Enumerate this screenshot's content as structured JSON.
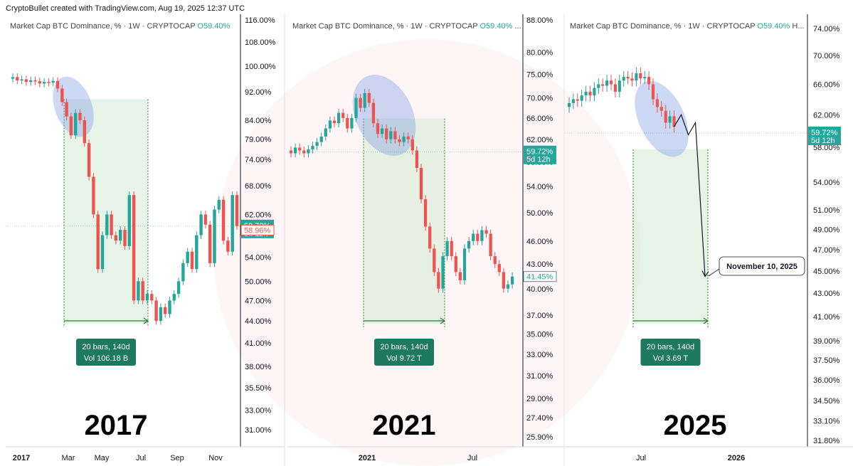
{
  "header": {
    "credit": "CryptoBullet created with TradingView.com, Aug 19, 2025 12:37 UTC"
  },
  "colors": {
    "up": "#26a69a",
    "down": "#ef5350",
    "label_bg": "#1e7a5e",
    "highlight": "#8fa8e6",
    "zone": "#c8e6c9"
  },
  "chart_data": [
    {
      "type": "candlestick",
      "title_prefix": "Market Cap BTC Dominance, % · 1W · CRYPTOCAP",
      "title_o": "O59.40%",
      "title_suffix": "",
      "year_label": "2017",
      "scale": "log",
      "ylim": [
        29.5,
        118
      ],
      "y_ticks": [
        "116.00%",
        "108.00%",
        "100.00%",
        "92.00%",
        "84.00%",
        "79.00%",
        "74.00%",
        "68.00%",
        "62.00%",
        "54.00%",
        "50.00%",
        "47.00%",
        "44.00%",
        "41.00%",
        "38.00%",
        "35.50%",
        "33.00%",
        "31.00%"
      ],
      "x_ticks": [
        "2017",
        "Mar",
        "May",
        "Jul",
        "Sep",
        "Nov"
      ],
      "current_price": {
        "label": "59.72%",
        "sub": "5d 12h",
        "value": 59.72
      },
      "secondary_price": {
        "label": "58.96%",
        "value": 58.96
      },
      "measure": {
        "bars": "20 bars, 140d",
        "vol": "Vol 106.18 B"
      },
      "series": [
        [
          96,
          96.5
        ],
        [
          96.5,
          95.5
        ],
        [
          95.5,
          95.8
        ],
        [
          95.8,
          95
        ],
        [
          95,
          95.5
        ],
        [
          95.5,
          95.2
        ],
        [
          95.2,
          94.5
        ],
        [
          94.5,
          95
        ],
        [
          95,
          94.8
        ],
        [
          94.8,
          95.3
        ],
        [
          95.3,
          93
        ],
        [
          93,
          89
        ],
        [
          89,
          85
        ],
        [
          85,
          80
        ],
        [
          80,
          86
        ],
        [
          86,
          84
        ],
        [
          84,
          78
        ],
        [
          78,
          70
        ],
        [
          70,
          62
        ],
        [
          62,
          52
        ],
        [
          52,
          58
        ],
        [
          58,
          62
        ],
        [
          62,
          58
        ],
        [
          58,
          57
        ],
        [
          57,
          59
        ],
        [
          59,
          56
        ],
        [
          56,
          66
        ],
        [
          66,
          47
        ],
        [
          47,
          50
        ],
        [
          50,
          47
        ],
        [
          47,
          48
        ],
        [
          48,
          47
        ],
        [
          47,
          44
        ],
        [
          44,
          46
        ],
        [
          46,
          45
        ],
        [
          45,
          47
        ],
        [
          47,
          48
        ],
        [
          48,
          50
        ],
        [
          50,
          53
        ],
        [
          53,
          55
        ],
        [
          55,
          52
        ],
        [
          52,
          58
        ],
        [
          58,
          62
        ],
        [
          62,
          60
        ],
        [
          60,
          53
        ],
        [
          53,
          63
        ],
        [
          63,
          65
        ],
        [
          65,
          57
        ],
        [
          57,
          55
        ],
        [
          55,
          66
        ],
        [
          66,
          59.72
        ]
      ]
    },
    {
      "type": "candlestick",
      "title_prefix": "Market Cap BTC Dominance, % · 1W · CRYPTOCAP",
      "title_o": "O59.40%",
      "title_suffix": "...",
      "year_label": "2021",
      "scale": "log",
      "ylim": [
        25.5,
        90
      ],
      "y_ticks": [
        "88.00%",
        "80.00%",
        "75.00%",
        "70.00%",
        "66.00%",
        "62.00%",
        "58.00%",
        "54.00%",
        "50.00%",
        "46.00%",
        "43.00%",
        "40.00%",
        "37.00%",
        "35.00%",
        "33.00%",
        "31.00%",
        "29.00%",
        "27.40%",
        "25.90%"
      ],
      "x_ticks": [
        "2021",
        "Jul"
      ],
      "current_price": {
        "label": "59.72%",
        "sub": "5d 12h",
        "value": 59.72
      },
      "secondary_price": {
        "label": "41.45%",
        "value": 41.45
      },
      "measure": {
        "bars": "20 bars, 140d",
        "vol": "Vol 9.72 T"
      },
      "series": [
        [
          60,
          59.5
        ],
        [
          59.5,
          60.5
        ],
        [
          60.5,
          60
        ],
        [
          60,
          59.5
        ],
        [
          59.5,
          60.2
        ],
        [
          60.2,
          60.8
        ],
        [
          60.8,
          61.5
        ],
        [
          61.5,
          62.5
        ],
        [
          62.5,
          64
        ],
        [
          64,
          65.5
        ],
        [
          65.5,
          65
        ],
        [
          65,
          67
        ],
        [
          67,
          66
        ],
        [
          66,
          64
        ],
        [
          64,
          66
        ],
        [
          66,
          70
        ],
        [
          70,
          68
        ],
        [
          68,
          71
        ],
        [
          71,
          69
        ],
        [
          69,
          65
        ],
        [
          65,
          63
        ],
        [
          63,
          64
        ],
        [
          64,
          62
        ],
        [
          62,
          63.5
        ],
        [
          63.5,
          62
        ],
        [
          62,
          61.5
        ],
        [
          61.5,
          62.5
        ],
        [
          62.5,
          62
        ],
        [
          62,
          60
        ],
        [
          60,
          57
        ],
        [
          57,
          52
        ],
        [
          52,
          48
        ],
        [
          48,
          45
        ],
        [
          45,
          42
        ],
        [
          42,
          40
        ],
        [
          40,
          44
        ],
        [
          44,
          46
        ],
        [
          46,
          44
        ],
        [
          44,
          42
        ],
        [
          42,
          41
        ],
        [
          41,
          45
        ],
        [
          45,
          46
        ],
        [
          46,
          47
        ],
        [
          47,
          46
        ],
        [
          46,
          47.5
        ],
        [
          47.5,
          47
        ],
        [
          47,
          44
        ],
        [
          44,
          43
        ],
        [
          43,
          42
        ],
        [
          42,
          40
        ],
        [
          40,
          40.5
        ],
        [
          40.5,
          41.45
        ]
      ]
    },
    {
      "type": "candlestick",
      "title_prefix": "Market Cap BTC Dominance, % · 1W · CRYPTOCAP",
      "title_o": "O59.40%",
      "title_suffix": "H...",
      "year_label": "2025",
      "scale": "log",
      "ylim": [
        31.5,
        76
      ],
      "y_ticks": [
        "74.00%",
        "70.00%",
        "66.00%",
        "62.00%",
        "58.00%",
        "54.00%",
        "51.00%",
        "49.00%",
        "47.00%",
        "45.00%",
        "43.00%",
        "41.00%",
        "39.00%",
        "37.50%",
        "36.00%",
        "34.50%",
        "33.10%",
        "31.80%"
      ],
      "x_ticks": [
        "Jul",
        "2026"
      ],
      "current_price": {
        "label": "59.72%",
        "sub": "5d 12h",
        "value": 59.72
      },
      "measure": {
        "bars": "20 bars, 140d",
        "vol": "Vol 3.69 T"
      },
      "annotation": "November 10, 2025",
      "series": [
        [
          63,
          63.5
        ],
        [
          63.5,
          64
        ],
        [
          64,
          63.8
        ],
        [
          63.8,
          64.5
        ],
        [
          64.5,
          65
        ],
        [
          65,
          64.5
        ],
        [
          64.5,
          65.5
        ],
        [
          65.5,
          66
        ],
        [
          66,
          65.8
        ],
        [
          65.8,
          66.5
        ],
        [
          66.5,
          66
        ],
        [
          66,
          65
        ],
        [
          65,
          66.5
        ],
        [
          66.5,
          67
        ],
        [
          67,
          66.8
        ],
        [
          66.8,
          66.5
        ],
        [
          66.5,
          67.5
        ],
        [
          67.5,
          66.8
        ],
        [
          66.8,
          67
        ],
        [
          67,
          66
        ],
        [
          66,
          64
        ],
        [
          64,
          63
        ],
        [
          63,
          62.5
        ],
        [
          62.5,
          61
        ],
        [
          61,
          61.8
        ],
        [
          61.8,
          60.5
        ]
      ],
      "projection": [
        60.5,
        62,
        59.5,
        61,
        44.5
      ]
    }
  ]
}
